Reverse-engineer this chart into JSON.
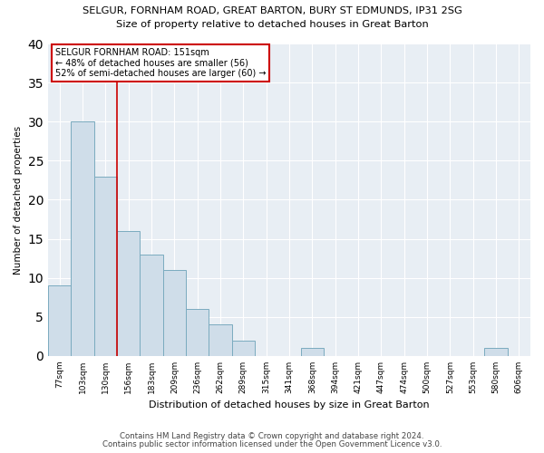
{
  "title1": "SELGUR, FORNHAM ROAD, GREAT BARTON, BURY ST EDMUNDS, IP31 2SG",
  "title2": "Size of property relative to detached houses in Great Barton",
  "xlabel": "Distribution of detached houses by size in Great Barton",
  "ylabel": "Number of detached properties",
  "categories": [
    "77sqm",
    "103sqm",
    "130sqm",
    "156sqm",
    "183sqm",
    "209sqm",
    "236sqm",
    "262sqm",
    "289sqm",
    "315sqm",
    "341sqm",
    "368sqm",
    "394sqm",
    "421sqm",
    "447sqm",
    "474sqm",
    "500sqm",
    "527sqm",
    "553sqm",
    "580sqm",
    "606sqm"
  ],
  "values": [
    9,
    30,
    23,
    16,
    13,
    11,
    6,
    4,
    2,
    0,
    0,
    1,
    0,
    0,
    0,
    0,
    0,
    0,
    0,
    1,
    0
  ],
  "bar_color": "#cfdde9",
  "bar_edge_color": "#7aabbf",
  "ylim": [
    0,
    40
  ],
  "yticks": [
    0,
    5,
    10,
    15,
    20,
    25,
    30,
    35,
    40
  ],
  "red_line_x": 2.5,
  "annotation_line1": "SELGUR FORNHAM ROAD: 151sqm",
  "annotation_line2": "← 48% of detached houses are smaller (56)",
  "annotation_line3": "52% of semi-detached houses are larger (60) →",
  "footnote1": "Contains HM Land Registry data © Crown copyright and database right 2024.",
  "footnote2": "Contains public sector information licensed under the Open Government Licence v3.0.",
  "bg_color": "#e8eef4"
}
